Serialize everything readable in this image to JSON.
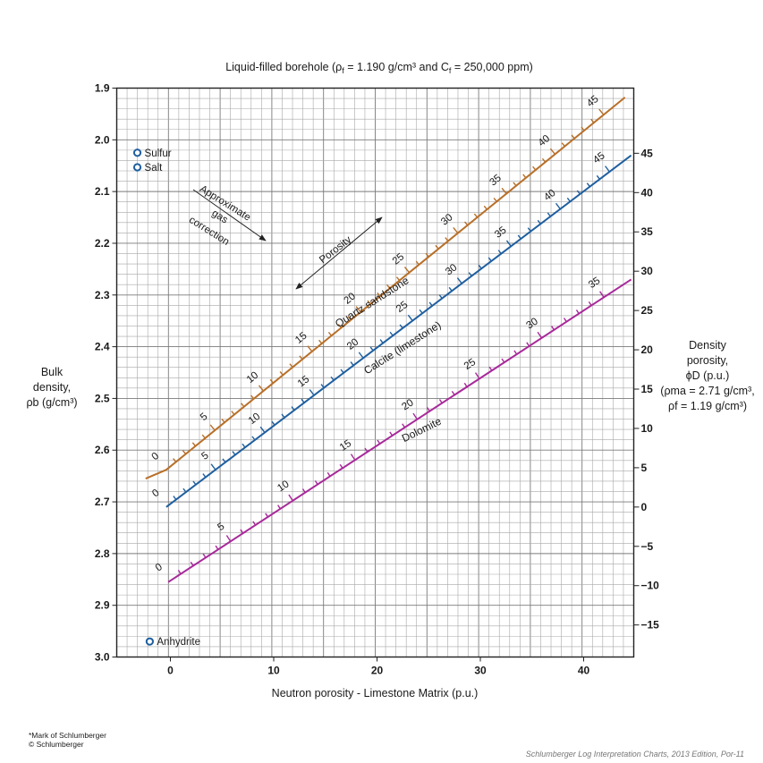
{
  "chart_data": {
    "type": "line",
    "title_parts": {
      "prefix": "Liquid-filled borehole (ρ",
      "rho_f_sub": "f",
      "mid": " = 1.190 g/cm³ and C",
      "c_f_sub": "f",
      "suffix": " = 250,000 ppm)"
    },
    "xlabel": "Neutron porosity - Limestone Matrix (p.u.)",
    "ylabel_lines": [
      "Bulk",
      "density,",
      "ρb (g/cm³)"
    ],
    "right_label_lines": [
      "Density",
      "porosity,",
      "ϕD (p.u.)",
      "(ρma = 2.71 g/cm³,",
      "ρf = 1.19 g/cm³)"
    ],
    "xlim": [
      -5,
      45
    ],
    "ylim": [
      1.9,
      3.0
    ],
    "y_inverted": true,
    "grid": true,
    "x_ticks": [
      0,
      10,
      20,
      30,
      40
    ],
    "y_ticks": [
      "1.9",
      "2.0",
      "2.1",
      "2.2",
      "2.3",
      "2.4",
      "2.5",
      "2.6",
      "2.7",
      "2.8",
      "2.9",
      "3.0"
    ],
    "right_ticks": [
      "45",
      "40",
      "35",
      "30",
      "25",
      "20",
      "15",
      "10",
      "5",
      "0",
      "−5",
      "−10",
      "−15"
    ],
    "series": [
      {
        "name": "Quartz sandstone",
        "color": "#b8702a",
        "points": [
          [
            -2.4,
            2.655
          ],
          [
            -0.4,
            2.638
          ],
          [
            44.0,
            1.918
          ]
        ],
        "labels": [
          "0",
          "5",
          "10",
          "15",
          "20",
          "25",
          "30",
          "35",
          "40",
          "45"
        ]
      },
      {
        "name": "Calcite (limestone)",
        "color": "#1f5f9f",
        "points": [
          [
            -0.4,
            2.71
          ],
          [
            44.6,
            2.03
          ]
        ],
        "labels": [
          "0",
          "5",
          "10",
          "15",
          "20",
          "25",
          "30",
          "35",
          "40",
          "45"
        ]
      },
      {
        "name": "Dolomite",
        "color": "#a8299a",
        "points": [
          [
            -0.2,
            2.855
          ],
          [
            44.6,
            2.27
          ]
        ],
        "labels": [
          "0",
          "5",
          "10",
          "15",
          "20",
          "25",
          "30",
          "35"
        ]
      }
    ],
    "minerals": [
      {
        "name": "Sulfur",
        "x": -3.2,
        "y": 2.025
      },
      {
        "name": "Salt",
        "x": -3.2,
        "y": 2.053
      },
      {
        "name": "Anhydrite",
        "x": -2.0,
        "y": 2.97
      }
    ],
    "annotations": {
      "gas_correction": [
        "Approximate",
        "gas",
        "correction"
      ],
      "porosity": "Porosity"
    }
  },
  "footnote": {
    "mark": "*Mark of Schlumberger",
    "copyright": "© Schlumberger"
  },
  "source": "Schlumberger Log Interpretation Charts, 2013 Edition, Por-11"
}
